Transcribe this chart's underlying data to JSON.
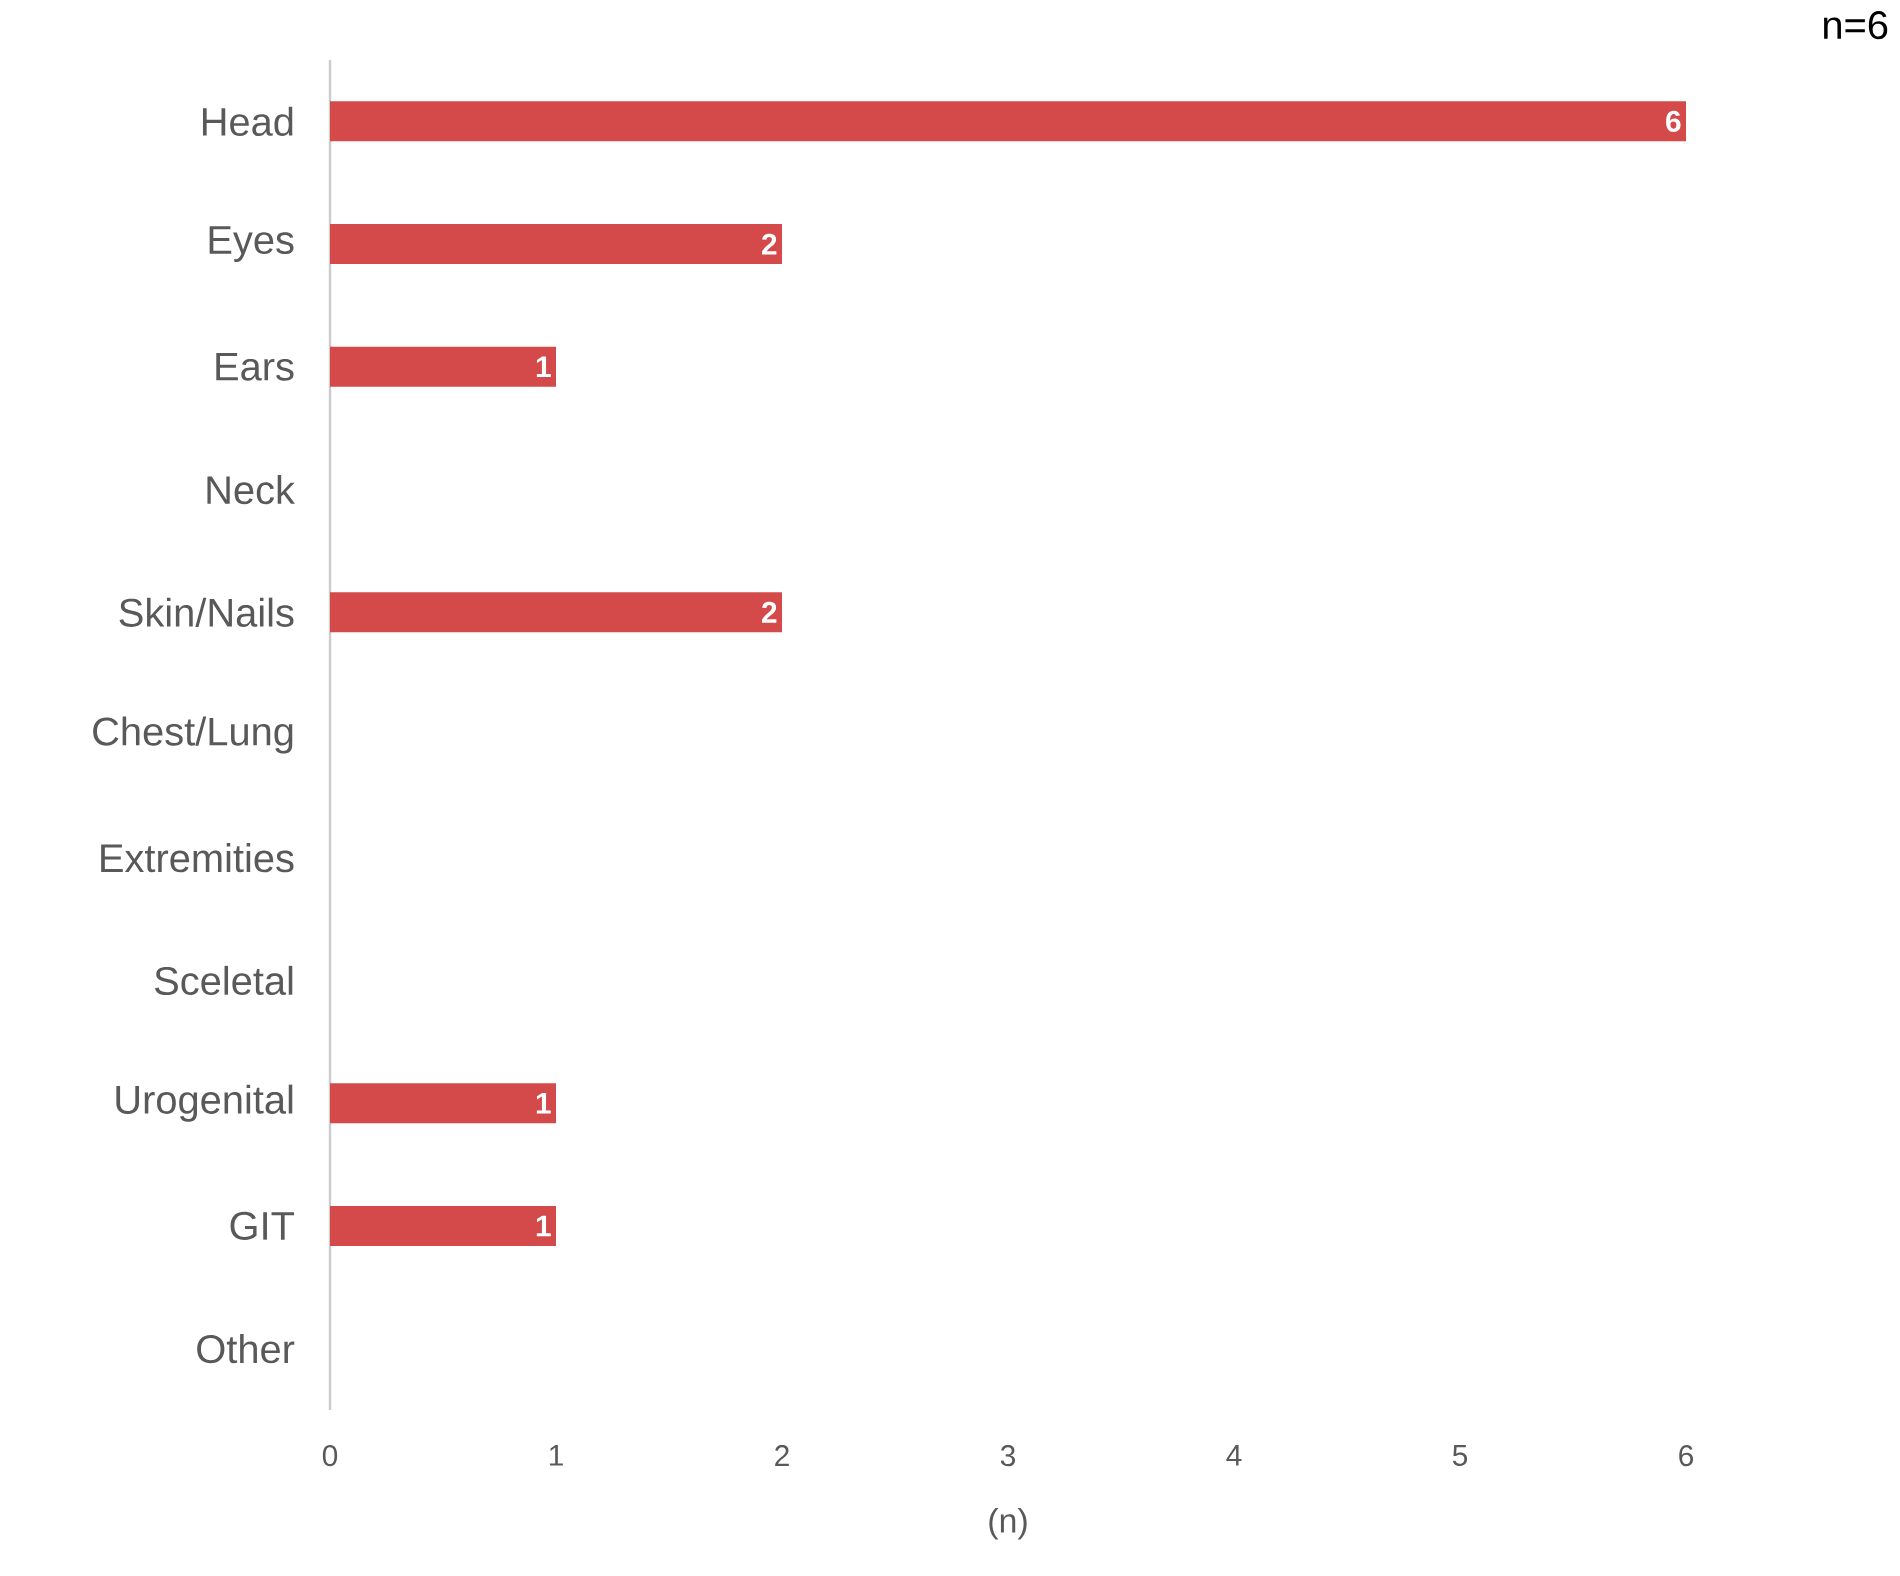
{
  "chart_data": {
    "type": "bar",
    "orientation": "horizontal",
    "categories": [
      "Head",
      "Eyes",
      "Ears",
      "Neck",
      "Skin/Nails",
      "Chest/Lung",
      "Extremities",
      "Sceletal",
      "Urogenital",
      "GIT",
      "Other"
    ],
    "values": [
      6,
      2,
      1,
      0,
      2,
      0,
      0,
      0,
      1,
      1,
      0
    ],
    "value_labels": [
      "6",
      "2",
      "1",
      null,
      "2",
      null,
      null,
      null,
      "1",
      "1",
      null
    ],
    "color": "#d44a4a",
    "xlim": [
      0,
      6
    ],
    "xticks": [
      0,
      1,
      2,
      3,
      4,
      5,
      6
    ],
    "xlabel": "(n)",
    "annotations": [
      "n=6"
    ],
    "grid": false
  }
}
